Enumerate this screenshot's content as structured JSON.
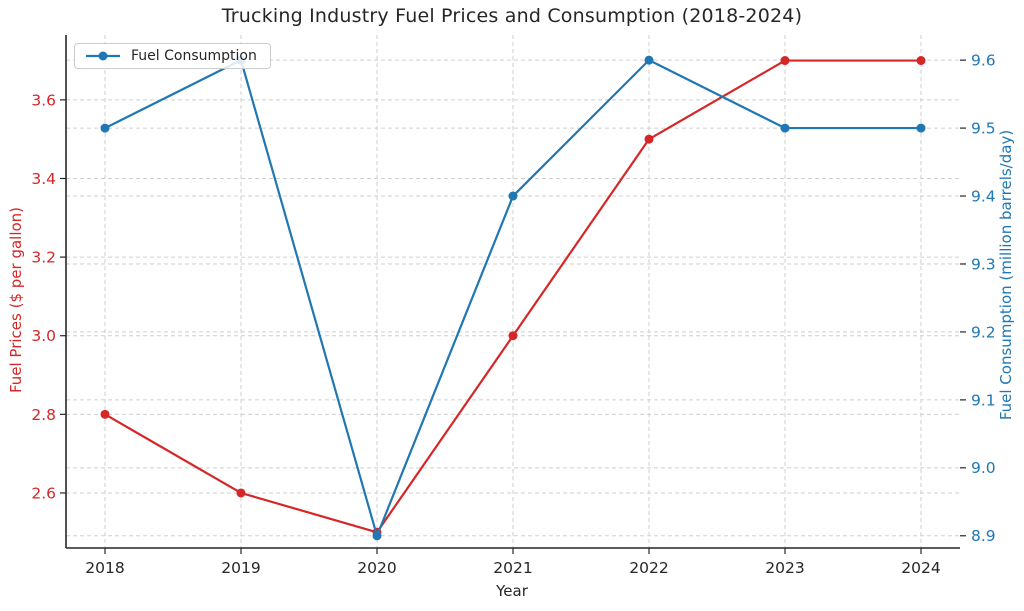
{
  "chart_data": {
    "type": "line",
    "title": "Trucking Industry Fuel Prices and Consumption (2018-2024)",
    "xlabel": "Year",
    "categories": [
      "2018",
      "2019",
      "2020",
      "2021",
      "2022",
      "2023",
      "2024"
    ],
    "series": [
      {
        "name": "Fuel Prices",
        "axis": "left",
        "color": "#d62728",
        "marker": "circle",
        "values": [
          2.8,
          2.6,
          2.5,
          3.0,
          3.5,
          3.7,
          3.7
        ]
      },
      {
        "name": "Fuel Consumption",
        "axis": "right",
        "color": "#1f77b4",
        "marker": "circle",
        "values": [
          9.5,
          9.6,
          8.9,
          9.4,
          9.6,
          9.5,
          9.5
        ]
      }
    ],
    "left_axis": {
      "label": "Fuel Prices ($ per gallon)",
      "color": "#d62728",
      "ticks": [
        2.6,
        2.8,
        3.0,
        3.2,
        3.4,
        3.6
      ],
      "range": [
        2.46,
        3.765
      ]
    },
    "right_axis": {
      "label": "Fuel Consumption (million barrels/day)",
      "color": "#1f77b4",
      "ticks": [
        8.9,
        9.0,
        9.1,
        9.2,
        9.3,
        9.4,
        9.5,
        9.6
      ],
      "range": [
        8.882,
        9.637
      ]
    },
    "legend": {
      "position": "upper-left",
      "entries": [
        "Fuel Consumption"
      ]
    },
    "grid": true,
    "grid_color": "#cfcfcf",
    "spine_color": "#262626",
    "tick_label_color": "#262626"
  }
}
